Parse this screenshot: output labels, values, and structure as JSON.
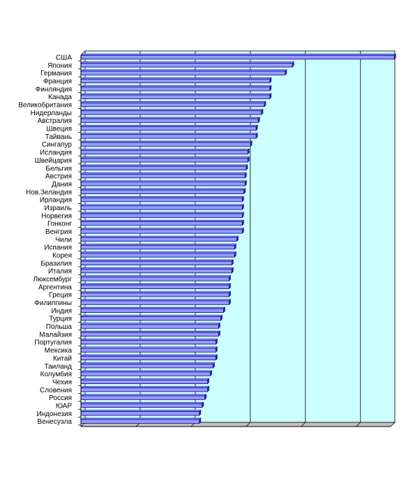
{
  "chart_data": {
    "type": "bar",
    "orientation": "horizontal",
    "title": "",
    "xlabel": "",
    "ylabel": "",
    "xlim": [
      0,
      5.7
    ],
    "grid": true,
    "legend": "none",
    "colors": {
      "plot_background": "#ccffff",
      "bar_fill": "#9999ff",
      "bar_edge": "#000080",
      "bar_side": "#333399",
      "gridline": "#000000"
    },
    "categories": [
      "США",
      "Япония",
      "Германия",
      "Франция",
      "Финляндия",
      "Канада",
      "Великобритания",
      "Нидерланды",
      "Австралия",
      "Швеция",
      "Тайвань",
      "Сингапур",
      "Исландия",
      "Швейцария",
      "Бельгия",
      "Австрия",
      "Дания",
      "Нов.Зеландия",
      "Ирландия",
      "Израиль",
      "Норвегия",
      "Гонконг",
      "Венгрия",
      "Чили",
      "Испания",
      "Корея",
      "Бразилия",
      "Италия",
      "Люксембург",
      "Аргентина",
      "Греция",
      "Филиппины",
      "Индия",
      "Турция",
      "Польша",
      "Малайзия",
      "Португалия",
      "Мексика",
      "Китай",
      "Таиланд",
      "Колумбия",
      "Чехия",
      "Словения",
      "Россия",
      "ЮАР",
      "Индонезия",
      "Венесуэла"
    ],
    "values": [
      5.69,
      3.84,
      3.71,
      3.43,
      3.43,
      3.43,
      3.33,
      3.28,
      3.22,
      3.18,
      3.18,
      3.08,
      3.03,
      3.03,
      3.0,
      2.98,
      2.98,
      2.96,
      2.93,
      2.93,
      2.93,
      2.93,
      2.93,
      2.83,
      2.79,
      2.79,
      2.74,
      2.74,
      2.69,
      2.69,
      2.69,
      2.69,
      2.59,
      2.54,
      2.5,
      2.5,
      2.45,
      2.45,
      2.45,
      2.4,
      2.35,
      2.3,
      2.3,
      2.25,
      2.2,
      2.15,
      2.15
    ]
  }
}
